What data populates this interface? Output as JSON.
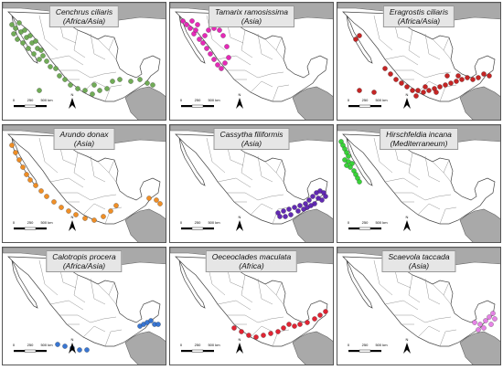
{
  "panels": [
    {
      "species": "Cenchrus ciliaris",
      "origin": "(Africa/Asia)",
      "color": "#6aa84f",
      "pattern": "nw-coast"
    },
    {
      "species": "Tamarix ramosissima",
      "origin": "(Asia)",
      "color": "#e61eb5",
      "pattern": "nw-north"
    },
    {
      "species": "Eragrostis ciliaris",
      "origin": "(Africa/Asia)",
      "color": "#c41a1a",
      "pattern": "south-band"
    },
    {
      "species": "Arundo donax",
      "origin": "(Asia)",
      "color": "#f08a1c",
      "pattern": "pacific-coast"
    },
    {
      "species": "Cassytha filiformis",
      "origin": "(Asia)",
      "color": "#5a1fb0",
      "pattern": "yucatan"
    },
    {
      "species": "Hirschfeldia incana",
      "origin": "(Mediterraneum)",
      "color": "#2fd12f",
      "pattern": "baja-north"
    },
    {
      "species": "Calotropis procera",
      "origin": "(Africa/Asia)",
      "color": "#2f6fd1",
      "pattern": "se-coast"
    },
    {
      "species": "Oeceoclades maculata",
      "origin": "(Africa)",
      "color": "#e01a2a",
      "pattern": "south-east"
    },
    {
      "species": "Scaevola taccada",
      "origin": "(Asia)",
      "color": "#e67ee6",
      "pattern": "caribbean"
    }
  ],
  "scale": {
    "labels": [
      "0",
      "250",
      "500 km"
    ]
  },
  "north": "N"
}
